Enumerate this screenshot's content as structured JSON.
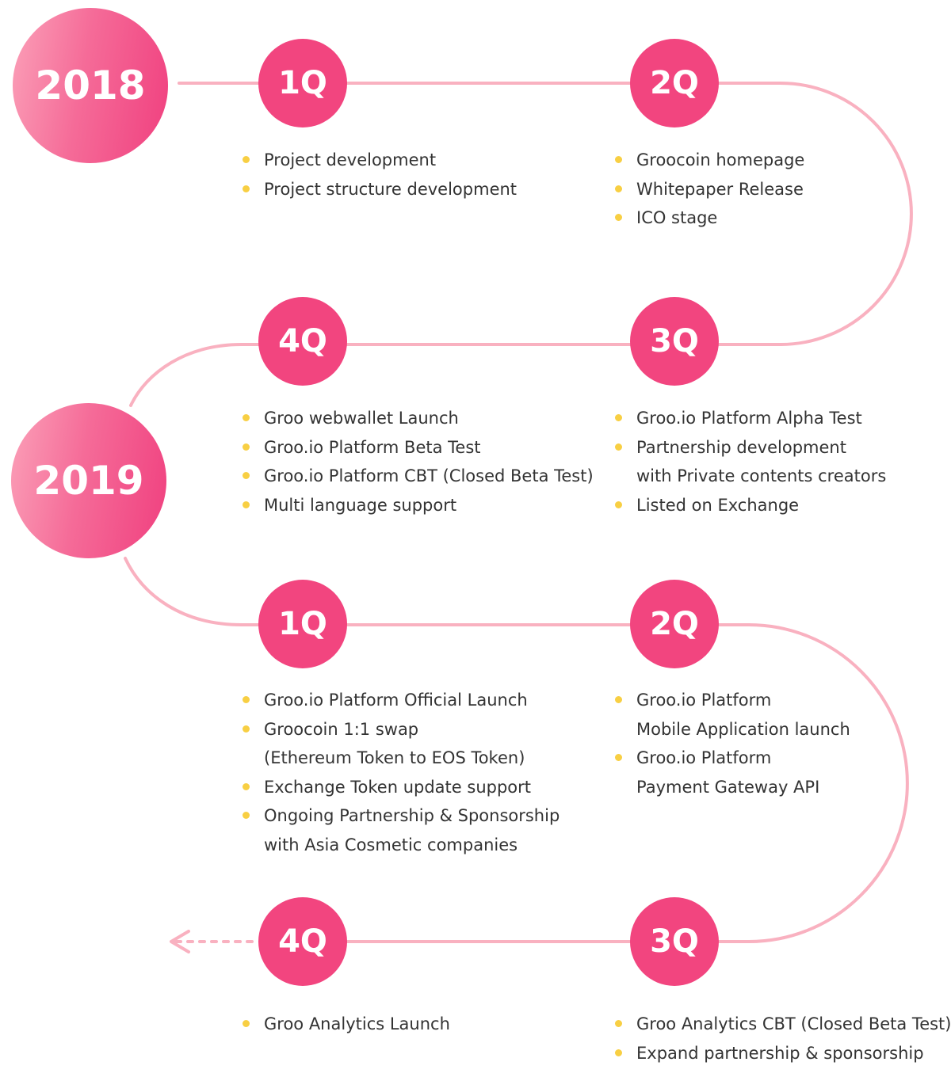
{
  "years": [
    {
      "label": "2018"
    },
    {
      "label": "2019"
    }
  ],
  "quarters": [
    {
      "label": "1Q",
      "items": [
        [
          "Project development"
        ],
        [
          "Project structure development"
        ]
      ]
    },
    {
      "label": "2Q",
      "items": [
        [
          "Groocoin homepage"
        ],
        [
          "Whitepaper Release"
        ],
        [
          "ICO stage"
        ]
      ]
    },
    {
      "label": "3Q",
      "items": [
        [
          "Groo.io Platform Alpha Test"
        ],
        [
          "Partnership development",
          "with Private contents creators"
        ],
        [
          "Listed on Exchange"
        ]
      ]
    },
    {
      "label": "4Q",
      "items": [
        [
          "Groo webwallet Launch"
        ],
        [
          "Groo.io Platform Beta Test"
        ],
        [
          "Groo.io Platform CBT (Closed Beta Test)"
        ],
        [
          "Multi language support"
        ]
      ]
    },
    {
      "label": "1Q",
      "items": [
        [
          "Groo.io Platform Official Launch"
        ],
        [
          "Groocoin 1:1 swap",
          "(Ethereum Token to EOS Token)"
        ],
        [
          "Exchange Token update support"
        ],
        [
          "Ongoing Partnership & Sponsorship",
          "with Asia Cosmetic companies"
        ]
      ]
    },
    {
      "label": "2Q",
      "items": [
        [
          "Groo.io Platform",
          "Mobile Application launch"
        ],
        [
          "Groo.io Platform",
          "Payment Gateway API"
        ]
      ]
    },
    {
      "label": "3Q",
      "items": [
        [
          "Groo Analytics CBT (Closed Beta Test)"
        ],
        [
          "Expand partnership & sponsorship"
        ]
      ]
    },
    {
      "label": "4Q",
      "items": [
        [
          "Groo Analytics Launch"
        ]
      ]
    }
  ],
  "colors": {
    "path": "#f9b1c0",
    "quarter_fill": "#f2457f",
    "bullet": "#f8cf43",
    "text": "#333333"
  }
}
